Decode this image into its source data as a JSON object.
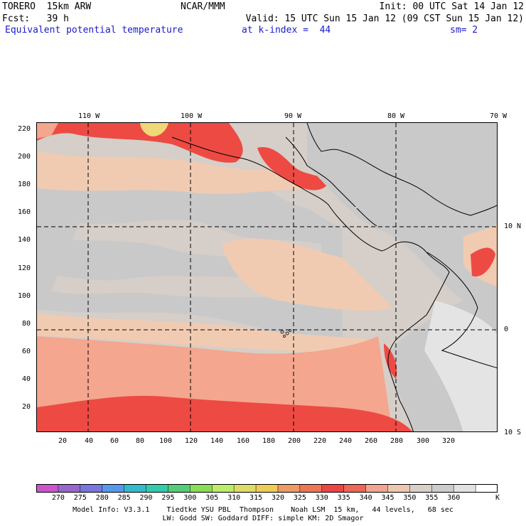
{
  "header": {
    "line1_left": "TORERO  15km ARW",
    "line1_center": "NCAR/MMM",
    "line1_right": "Init: 00 UTC Sat 14 Jan 12",
    "line2_left": "Fcst:   39 h",
    "line2_right": "Valid: 15 UTC Sun 15 Jan 12 (09 CST Sun 15 Jan 12)",
    "line3_left": "Equivalent potential temperature",
    "line3_center": "at k-index =  44",
    "line3_right": "sm= 2"
  },
  "map": {
    "top_longitude_labels": [
      "110 W",
      "100 W",
      "90 W",
      "80 W",
      "70 W"
    ],
    "right_latitude_labels": [
      "10 N",
      "0",
      "10 S"
    ],
    "left_grid_labels": [
      "220",
      "200",
      "180",
      "160",
      "140",
      "120",
      "100",
      "80",
      "60",
      "40",
      "20"
    ],
    "bottom_grid_labels": [
      "20",
      "40",
      "60",
      "80",
      "100",
      "120",
      "140",
      "160",
      "180",
      "200",
      "220",
      "240",
      "260",
      "280",
      "300",
      "320"
    ]
  },
  "colorbar": {
    "unit": "K",
    "ticks": [
      "270",
      "275",
      "280",
      "285",
      "290",
      "295",
      "300",
      "305",
      "310",
      "315",
      "320",
      "325",
      "330",
      "335",
      "340",
      "345",
      "350",
      "355",
      "360"
    ],
    "colors": [
      "#cc55cc",
      "#9966cc",
      "#7777dd",
      "#5599ee",
      "#33bbcc",
      "#33ccaa",
      "#55cc77",
      "#88dd55",
      "#bbee66",
      "#dddd66",
      "#eecc55",
      "#ee9966",
      "#ee7755",
      "#ee4444",
      "#ee6655",
      "#f2a590",
      "#efc7b0",
      "#d8cfc8",
      "#cccccc",
      "#e2e2e2",
      "#ffffff"
    ]
  },
  "field_colors": {
    "red": "#ee4a44",
    "salmon": "#f4a68e",
    "peach": "#f0cbb2",
    "taupe": "#d6cec8",
    "grey": "#c9c9c9",
    "light": "#e4e4e4",
    "yellow": "#f0d878"
  },
  "footer": {
    "info_line1": "Model Info: V3.3.1    Tiedtke YSU PBL  Thompson    Noah LSM  15 km,   44 levels,   68 sec",
    "info_line2": "LW: Godd SW: Goddard DIFF: simple KM: 2D Smagor"
  }
}
